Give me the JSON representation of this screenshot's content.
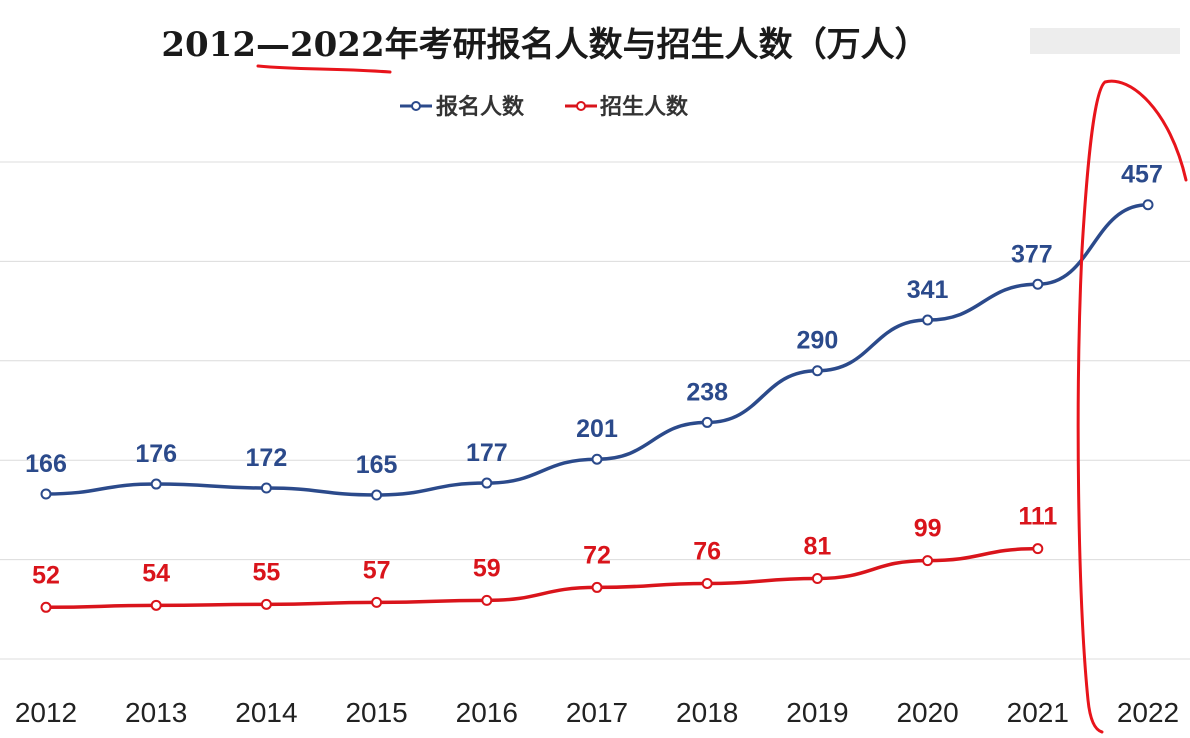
{
  "chart_data": {
    "type": "line",
    "title": "2012—2022年考研报名人数与招生人数（万人）",
    "categories": [
      "2012",
      "2013",
      "2014",
      "2015",
      "2016",
      "2017",
      "2018",
      "2019",
      "2020",
      "2021",
      "2022"
    ],
    "series": [
      {
        "name": "报名人数",
        "color": "#2b4a8b",
        "values": [
          166,
          176,
          172,
          165,
          177,
          201,
          238,
          290,
          341,
          377,
          457
        ]
      },
      {
        "name": "招生人数",
        "color": "#d9141b",
        "values": [
          52,
          54,
          55,
          57,
          59,
          72,
          76,
          81,
          99,
          111,
          null
        ]
      }
    ],
    "ylim": [
      0,
      500
    ],
    "yticks": [
      0,
      100,
      200,
      300,
      400,
      500
    ],
    "grid": true,
    "legend": "top-center",
    "annotation_color": "#e8141b"
  }
}
